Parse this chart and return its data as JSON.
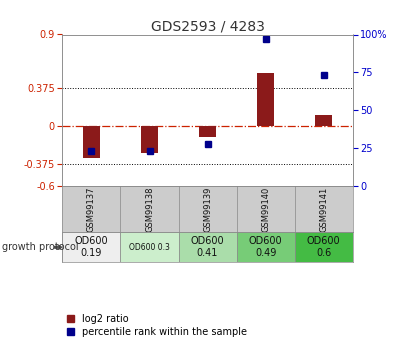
{
  "title": "GDS2593 / 4283",
  "samples": [
    "GSM99137",
    "GSM99138",
    "GSM99139",
    "GSM99140",
    "GSM99141"
  ],
  "log2_ratio": [
    -0.32,
    -0.27,
    -0.11,
    0.52,
    0.1
  ],
  "percentile_rank": [
    23,
    23,
    28,
    97,
    73
  ],
  "ylim_left": [
    -0.6,
    0.9
  ],
  "ylim_right": [
    0,
    100
  ],
  "bar_color": "#8B1A1A",
  "dot_color": "#00008B",
  "dot_size": 25,
  "title_color": "#333333",
  "left_tick_color": "#CC2200",
  "right_tick_color": "#0000CC",
  "protocol_labels": [
    "OD600\n0.19",
    "OD600 0.3",
    "OD600\n0.41",
    "OD600\n0.49",
    "OD600\n0.6"
  ],
  "protocol_colors": [
    "#eeeeee",
    "#cceecc",
    "#aaddaa",
    "#77cc77",
    "#44bb44"
  ],
  "sample_bg_color": "#cccccc",
  "legend_red_label": "log2 ratio",
  "legend_blue_label": "percentile rank within the sample"
}
